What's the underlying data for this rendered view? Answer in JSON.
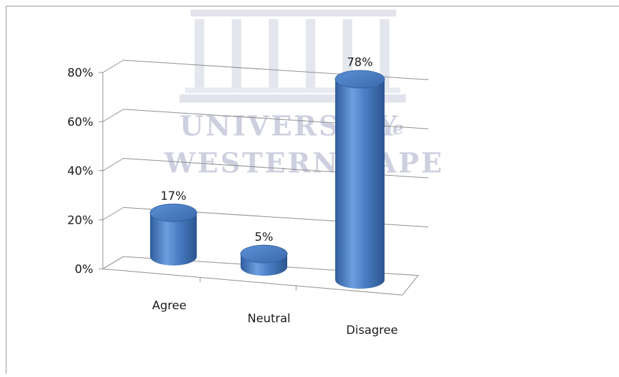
{
  "watermark": {
    "line1": "UNIVERSITY",
    "line1_tail": "of the",
    "line2": "WESTERN CAPE"
  },
  "chart_data": {
    "type": "bar",
    "style": "3d-cylinder",
    "categories": [
      "Agree",
      "Neutral",
      "Disagree"
    ],
    "values": [
      17,
      5,
      78
    ],
    "data_labels": [
      "17%",
      "5%",
      "78%"
    ],
    "ylim": [
      0,
      80
    ],
    "yticks": [
      0,
      20,
      40,
      60,
      80
    ],
    "ytick_labels": [
      "0%",
      "20%",
      "40%",
      "60%",
      "80%"
    ],
    "grid": true,
    "legend": "none",
    "bar_color": "#4a7ec4"
  }
}
